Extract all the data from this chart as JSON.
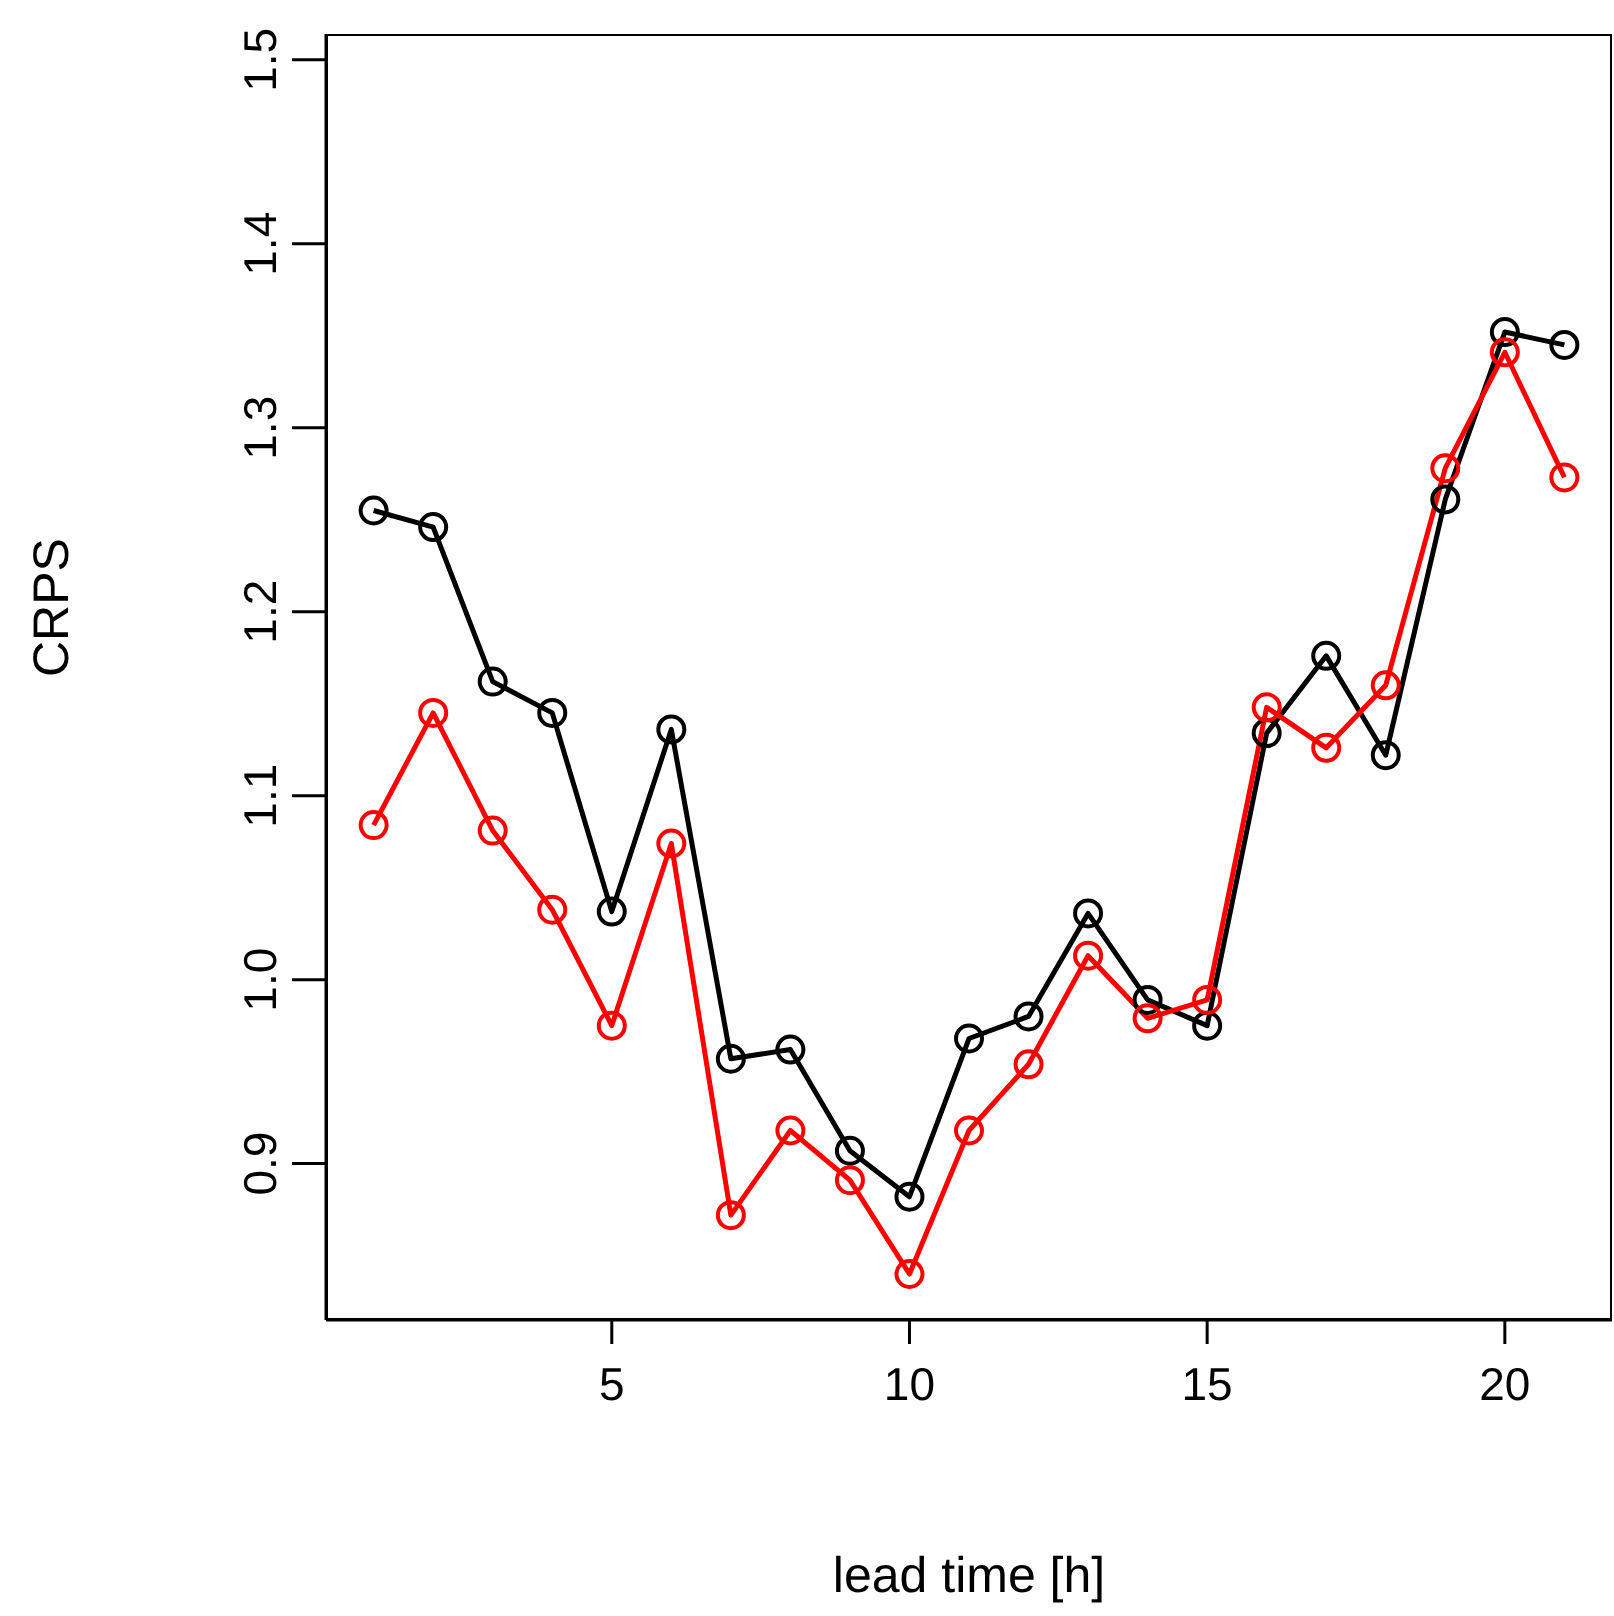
{
  "chart_data": {
    "type": "line",
    "xlabel": "lead time [h]",
    "ylabel": "CRPS",
    "x": [
      1,
      2,
      3,
      4,
      5,
      6,
      7,
      8,
      9,
      10,
      11,
      12,
      13,
      14,
      15,
      16,
      17,
      18,
      19,
      20,
      21
    ],
    "series": [
      {
        "color": "#000000",
        "values": [
          1.255,
          1.246,
          1.162,
          1.145,
          1.037,
          1.136,
          0.957,
          0.962,
          0.907,
          0.882,
          0.968,
          0.98,
          1.036,
          0.989,
          0.975,
          1.134,
          1.176,
          1.122,
          1.261,
          1.352,
          1.345
        ]
      },
      {
        "color": "#ff0000",
        "values": [
          1.084,
          1.145,
          1.081,
          1.038,
          0.975,
          1.074,
          0.872,
          0.918,
          0.891,
          0.84,
          0.918,
          0.954,
          1.013,
          0.979,
          0.989,
          1.148,
          1.126,
          1.16,
          1.278,
          1.341,
          1.273
        ]
      }
    ],
    "xlim": [
      0.2,
      21.8
    ],
    "xticks": [
      5,
      10,
      15,
      20
    ],
    "ylim": [
      0.815,
      1.514
    ],
    "yticks": [
      0.9,
      {
        "value": 1.0,
        "label": "1.0"
      },
      1.1,
      1.2,
      1.3,
      1.4,
      1.5
    ],
    "marker": "circle",
    "line_style": "solid",
    "grid": false,
    "legend": false
  }
}
